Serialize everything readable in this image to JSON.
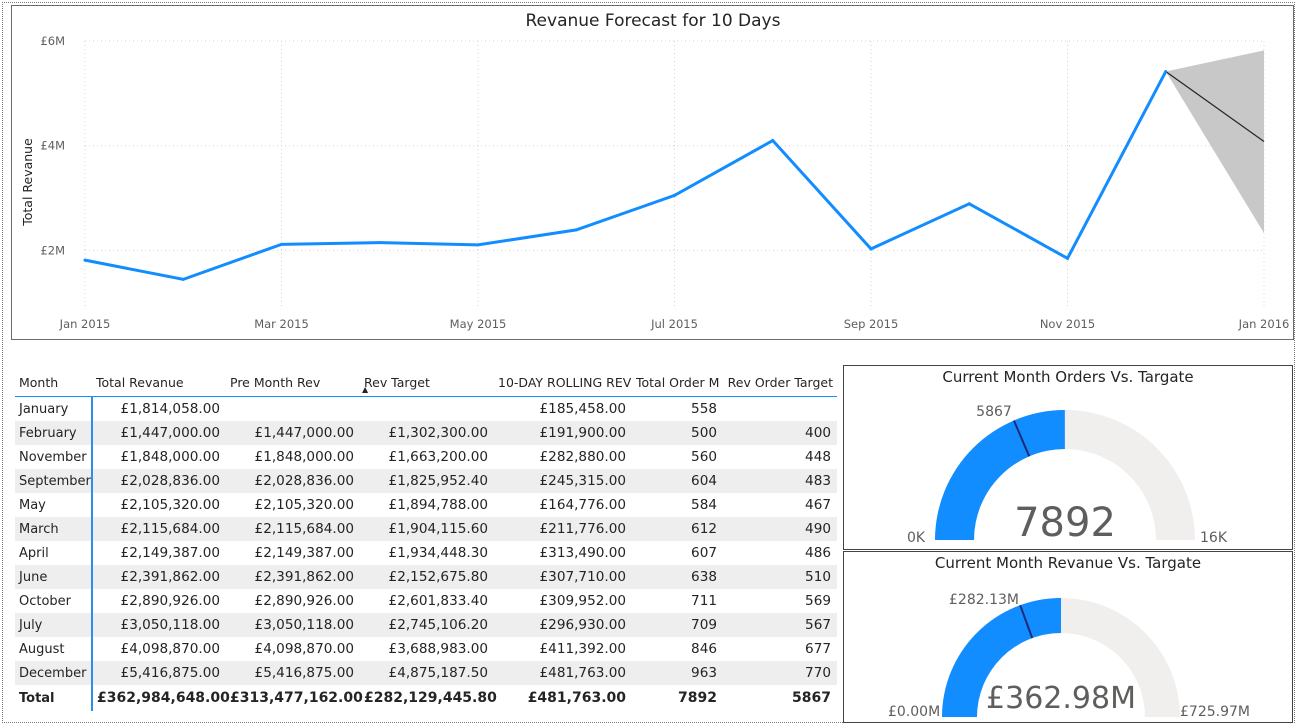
{
  "chart_data": {
    "type": "line",
    "title": "Revanue Forecast for 10 Days",
    "ylabel": "Total Revanue",
    "xlabel": "",
    "x_ticks": [
      "Jan 2015",
      "Mar 2015",
      "May 2015",
      "Jul 2015",
      "Sep 2015",
      "Nov 2015",
      "Jan 2016"
    ],
    "y_ticks": [
      "£2M",
      "£4M",
      "£6M"
    ],
    "ylim": [
      0.9,
      6.0
    ],
    "grid": true,
    "series": [
      {
        "x": [
          "Jan 2015",
          "Feb 2015",
          "Mar 2015",
          "Apr 2015",
          "May 2015",
          "Jun 2015",
          "Jul 2015",
          "Aug 2015",
          "Sep 2015",
          "Oct 2015",
          "Nov 2015",
          "Dec 2015"
        ],
        "values": [
          1.814058,
          1.447,
          2.115684,
          2.149387,
          2.10532,
          2.391862,
          3.050118,
          4.09887,
          2.028836,
          2.890926,
          1.848,
          5.416875
        ],
        "color": "#118dff"
      }
    ],
    "forecast": {
      "x": [
        "Dec 2015",
        "Jan 2016"
      ],
      "values": [
        5.416875,
        4.08
      ],
      "upper": [
        5.416875,
        5.82
      ],
      "lower": [
        5.416875,
        2.33
      ],
      "color": "#252423",
      "band_color": "#c8c8c8"
    }
  },
  "table": {
    "columns": [
      "Month",
      "Total Revanue",
      "Pre Month Rev",
      "Rev Target",
      "10-DAY ROLLING REV",
      "Total Order M",
      "Rev Order Target"
    ],
    "rows": [
      [
        "January",
        "£1,814,058.00",
        "",
        "",
        "£185,458.00",
        "558",
        ""
      ],
      [
        "February",
        "£1,447,000.00",
        "£1,447,000.00",
        "£1,302,300.00",
        "£191,900.00",
        "500",
        "400"
      ],
      [
        "November",
        "£1,848,000.00",
        "£1,848,000.00",
        "£1,663,200.00",
        "£282,880.00",
        "560",
        "448"
      ],
      [
        "September",
        "£2,028,836.00",
        "£2,028,836.00",
        "£1,825,952.40",
        "£245,315.00",
        "604",
        "483"
      ],
      [
        "May",
        "£2,105,320.00",
        "£2,105,320.00",
        "£1,894,788.00",
        "£164,776.00",
        "584",
        "467"
      ],
      [
        "March",
        "£2,115,684.00",
        "£2,115,684.00",
        "£1,904,115.60",
        "£211,776.00",
        "612",
        "490"
      ],
      [
        "April",
        "£2,149,387.00",
        "£2,149,387.00",
        "£1,934,448.30",
        "£313,490.00",
        "607",
        "486"
      ],
      [
        "June",
        "£2,391,862.00",
        "£2,391,862.00",
        "£2,152,675.80",
        "£307,710.00",
        "638",
        "510"
      ],
      [
        "October",
        "£2,890,926.00",
        "£2,890,926.00",
        "£2,601,833.40",
        "£309,952.00",
        "711",
        "569"
      ],
      [
        "July",
        "£3,050,118.00",
        "£3,050,118.00",
        "£2,745,106.20",
        "£296,930.00",
        "709",
        "567"
      ],
      [
        "August",
        "£4,098,870.00",
        "£4,098,870.00",
        "£3,688,983.00",
        "£411,392.00",
        "846",
        "677"
      ],
      [
        "December",
        "£5,416,875.00",
        "£5,416,875.00",
        "£4,875,187.50",
        "£481,763.00",
        "963",
        "770"
      ]
    ],
    "total": [
      "Total",
      "£362,984,648.00",
      "£313,477,162.00",
      "£282,129,445.80",
      "£481,763.00",
      "7892",
      "5867"
    ],
    "sort_icon": "sort-ascending-icon"
  },
  "gauges": [
    {
      "title": "Current Month Orders Vs. Targate",
      "value_label": "7892",
      "min_label": "0K",
      "max_label": "16K",
      "target_label": "5867",
      "fill_fraction": 0.4996,
      "target_fraction": 0.3714,
      "fill_color": "#118dff",
      "track_color": "#f0efee",
      "target_color": "#1c2b75"
    },
    {
      "title": "Current Month Revanue Vs. Targate",
      "value_label": "£362.98M",
      "min_label": "£0.00M",
      "max_label": "£725.97M",
      "target_label": "£282.13M",
      "fill_fraction": 0.5,
      "target_fraction": 0.3886,
      "fill_color": "#118dff",
      "track_color": "#f0efee",
      "target_color": "#1c2b75"
    }
  ]
}
